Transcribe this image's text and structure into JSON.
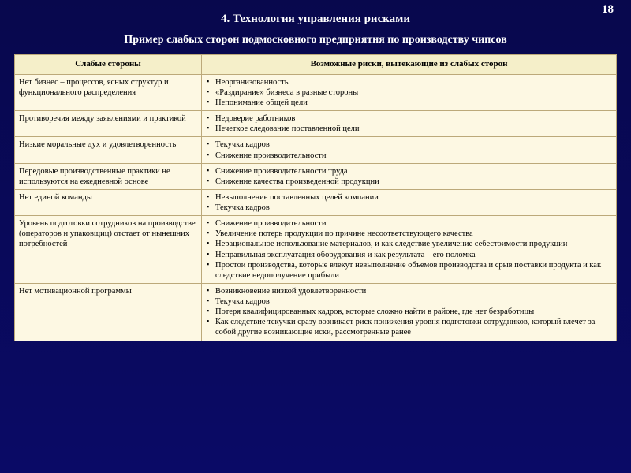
{
  "page_number": "18",
  "title": "4. Технология управления рисками",
  "subtitle": "Пример слабых сторон подмосковного предприятия по производству чипсов",
  "table": {
    "columns": [
      "Слабые стороны",
      "Возможные риски, вытекающие из слабых сторон"
    ],
    "rows": [
      {
        "weakness": "Нет бизнес – процессов, ясных структур и функционального распределения",
        "risks": [
          "Неорганизованность",
          "«Раздирание» бизнеса в разные стороны",
          "Непонимание общей цели"
        ]
      },
      {
        "weakness": "Противоречия между заявлениями и практикой",
        "risks": [
          "Недоверие работников",
          "Нечеткое следование поставленной цели"
        ]
      },
      {
        "weakness": "Низкие моральные дух и удовлетворенность",
        "risks": [
          "Текучка кадров",
          "Снижение производительности"
        ]
      },
      {
        "weakness": "Передовые производственные практики не используются на ежедневной основе",
        "risks": [
          "Снижение производительности труда",
          "Снижение качества произведенной продукции"
        ]
      },
      {
        "weakness": "Нет единой команды",
        "risks": [
          "Невыполнение поставленных целей компании",
          "Текучка кадров"
        ]
      },
      {
        "weakness": "Уровень подготовки сотрудников на производстве (операторов и упаковщиц) отстает от нынешних потребностей",
        "risks": [
          "Снижение производительности",
          "Увеличение потерь продукции по причине несоответствующего качества",
          "Нерациональное использование материалов, и как следствие увеличение себестоимости продукции",
          "Неправильная эксплуатация оборудования и как результата – его поломка",
          "Простои производства, которые влекут невыполнение объемов производства и срыв поставки продукта и как следствие недополучение прибыли"
        ]
      },
      {
        "weakness": "Нет мотивационной программы",
        "risks": [
          "Возникновение низкой удовлетворенности",
          "Текучка кадров",
          "Потеря квалифицированных кадров, которые сложно найти в районе, где нет безработицы",
          "Как следствие текучки сразу возникает риск понижения уровня подготовки сотрудников, который влечет за собой другие возникающие иски, рассмотренные ранее"
        ]
      }
    ]
  },
  "colors": {
    "slide_bg_top": "#08084d",
    "slide_bg_bottom": "#0a0a66",
    "table_bg": "#fdf8e3",
    "header_bg": "#f5efc9",
    "border": "#bca97a",
    "text_light": "#ffffff",
    "text_dark": "#000000"
  }
}
